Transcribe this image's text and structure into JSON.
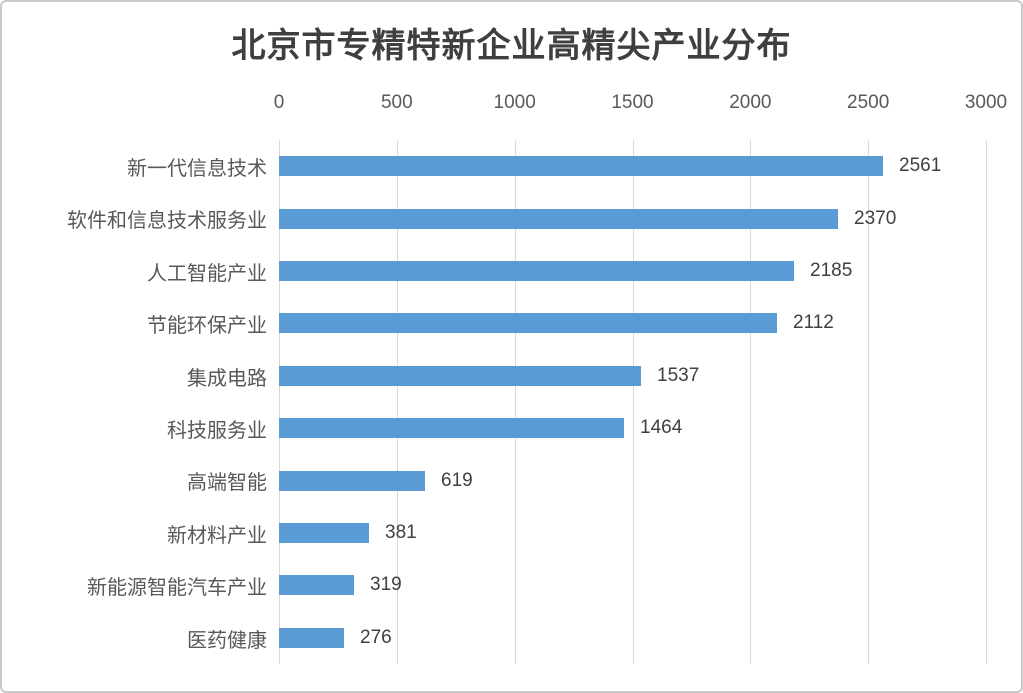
{
  "title": "北京市专精特新企业高精尖产业分布",
  "colors": {
    "bar": "#5b9bd5",
    "gridline": "#d9d9d9",
    "axis_text": "#595959",
    "value_text": "#404040",
    "title_text": "#3f3f3f",
    "frame_border": "#c9c9c9",
    "background": "#ffffff"
  },
  "chart_data": {
    "type": "bar",
    "orientation": "horizontal",
    "title": "北京市专精特新企业高精尖产业分布",
    "categories": [
      "新一代信息技术",
      "软件和信息技术服务业",
      "人工智能产业",
      "节能环保产业",
      "集成电路",
      "科技服务业",
      "高端智能",
      "新材料产业",
      "新能源智能汽车产业",
      "医药健康"
    ],
    "values": [
      2561,
      2370,
      2185,
      2112,
      1537,
      1464,
      619,
      381,
      319,
      276
    ],
    "value_labels": [
      "2561",
      "2370",
      "2185",
      "2112",
      "1537",
      "1464",
      "619",
      "381",
      "319",
      "276"
    ],
    "x_ticks": [
      0,
      500,
      1000,
      1500,
      2000,
      2500,
      3000
    ],
    "x_tick_labels": [
      "0",
      "500",
      "1000",
      "1500",
      "2000",
      "2500",
      "3000"
    ],
    "xlim": [
      0,
      3000
    ],
    "xlabel": "",
    "ylabel": "",
    "axis_position": "top",
    "grid": true,
    "legend": false,
    "data_labels": true
  }
}
